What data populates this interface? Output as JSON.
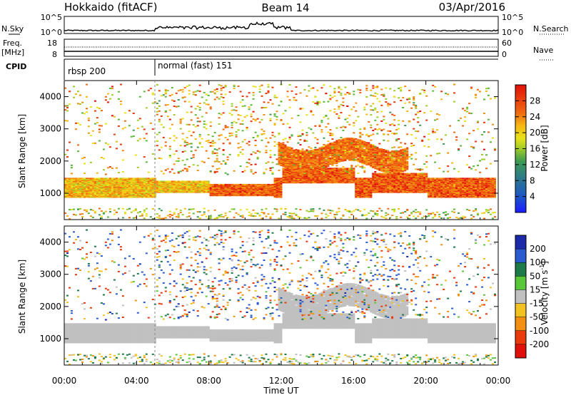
{
  "header": {
    "station": "Hokkaido (fitACF)",
    "beam": "Beam 14",
    "date": "03/Apr/2016"
  },
  "summary": {
    "nsky_label": "N.Sky",
    "nsky_ticks": [
      "10^5",
      "10^0"
    ],
    "nsearch_label": "N.Search",
    "nsearch_ticks": [
      "10^5",
      "10^0"
    ],
    "freq_label": "Freq.",
    "freq_unit": "[MHz]",
    "freq_ticks": [
      "18",
      "8"
    ],
    "nave_label": "Nave",
    "nave_ticks": [
      "60",
      "0"
    ],
    "cpid_label": "CPID",
    "cpid_segments": [
      {
        "label": "rbsp 200",
        "start_hour": 0
      },
      {
        "label": "normal (fast) 151",
        "start_hour": 5
      }
    ]
  },
  "chart_data": [
    {
      "type": "heatmap",
      "title": "",
      "parameter": "Power",
      "ylabel": "Slant Range [km]",
      "xlabel": "",
      "xlim": [
        "00:00",
        "24:00"
      ],
      "ylim": [
        180,
        4500
      ],
      "yticks": [
        1000,
        2000,
        3000,
        4000
      ],
      "colorbar": {
        "label": "Power [dB]",
        "range": [
          0,
          32
        ],
        "ticks": [
          "4",
          "8",
          "12",
          "16",
          "20",
          "24",
          "28"
        ],
        "colors": [
          "#1b1bff",
          "#1e55c8",
          "#2e7d86",
          "#3c9a52",
          "#5ab83a",
          "#a0cc2a",
          "#e8e21a",
          "#f5b814",
          "#f39012",
          "#f06a10",
          "#ea3a0c",
          "#e0100a"
        ]
      },
      "features": [
        {
          "name": "near-range band",
          "range_km": [
            900,
            1500
          ],
          "hours": [
            0,
            24
          ],
          "power_db": 22
        },
        {
          "name": "mid-range band",
          "range_km": [
            1800,
            2600
          ],
          "hours": [
            11.8,
            19
          ],
          "power_db": 25
        }
      ]
    },
    {
      "type": "heatmap",
      "title": "",
      "parameter": "Velocity",
      "ylabel": "Slant Range [km]",
      "xlabel": "Time UT",
      "xlim": [
        "00:00",
        "24:00"
      ],
      "xticks": [
        "00:00",
        "04:00",
        "08:00",
        "12:00",
        "16:00",
        "20:00",
        "00:00"
      ],
      "ylim": [
        180,
        4500
      ],
      "yticks": [
        1000,
        2000,
        3000,
        4000
      ],
      "colorbar": {
        "label": "Velocity [m s^-1]",
        "range": [
          -250,
          250
        ],
        "ticks": [
          "200",
          "100",
          "50",
          "15",
          "-15",
          "-50",
          "-100",
          "-200"
        ],
        "colors": [
          "#1a2aa8",
          "#2a5bd0",
          "#1f7a4a",
          "#58c83a",
          "#c0c0c0",
          "#f2c320",
          "#f39012",
          "#ea3a0c",
          "#e0100a"
        ]
      },
      "features": [
        {
          "name": "ground scatter band",
          "range_km": [
            900,
            1600
          ],
          "hours": [
            0,
            24
          ],
          "velocity_ms": 0
        },
        {
          "name": "mid-range band",
          "range_km": [
            1800,
            2700
          ],
          "hours": [
            11.8,
            19
          ],
          "velocity_ms": 0
        }
      ]
    }
  ]
}
